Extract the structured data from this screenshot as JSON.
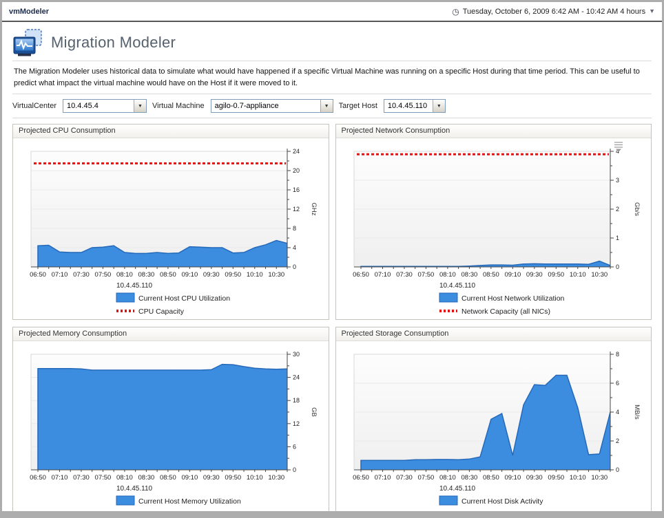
{
  "header": {
    "app_title": "vmModeler",
    "clock_icon": "clock",
    "date_range": "Tuesday, October 6, 2009 6:42 AM - 10:42 AM 4 hours",
    "dropdown_arrow": "▼"
  },
  "page": {
    "title": "Migration Modeler",
    "description": "The Migration Modeler uses historical data to simulate what would have happened if a specific Virtual Machine was running on a specific Host during that time period. This can be useful to predict what impact the virtual machine would have on the Host if it were moved to it."
  },
  "filters": {
    "virtualcenter_label": "VirtualCenter",
    "virtualcenter_value": "10.4.45.4",
    "vm_label": "Virtual Machine",
    "vm_value": "agilo-0.7-appliance",
    "target_label": "Target Host",
    "target_value": "10.4.45.110"
  },
  "colors": {
    "area_fill": "#3c8ce0",
    "area_stroke": "#2569b8",
    "capacity_red": "#e41212",
    "grid": "#e9e9e9",
    "axis": "#444444",
    "plot_border": "#d8d8d8",
    "tick_text": "#222222"
  },
  "chart_data": [
    {
      "type": "area",
      "panel_title": "Projected CPU Consumption",
      "host": "10.4.45.110",
      "x": [
        "06:50",
        "07:00",
        "07:10",
        "07:20",
        "07:30",
        "07:40",
        "07:50",
        "08:00",
        "08:10",
        "08:20",
        "08:30",
        "08:40",
        "08:50",
        "09:00",
        "09:10",
        "09:20",
        "09:30",
        "09:40",
        "09:50",
        "10:00",
        "10:10",
        "10:20",
        "10:30",
        "10:40"
      ],
      "x_tick_labels": [
        "06:50",
        "07:10",
        "07:30",
        "07:50",
        "08:10",
        "08:30",
        "08:50",
        "09:10",
        "09:30",
        "09:50",
        "10:10",
        "10:30"
      ],
      "series": [
        {
          "name": "Current Host CPU Utilization",
          "values": [
            4.4,
            4.5,
            3.1,
            3.0,
            3.0,
            4.0,
            4.1,
            4.4,
            3.0,
            2.8,
            2.8,
            3.0,
            2.8,
            2.9,
            4.2,
            4.1,
            4.0,
            4.0,
            2.9,
            3.0,
            4.0,
            4.6,
            5.5,
            4.9
          ]
        }
      ],
      "capacity": {
        "label": "CPU Capacity",
        "value": 21.5
      },
      "ylim": [
        0,
        24
      ],
      "ymajor": 4,
      "yminor": 2,
      "ytick_labels": [
        "0",
        "4",
        "8",
        "12",
        "16",
        "20",
        "24"
      ],
      "ylabel": "GHz",
      "has_menu_icon": false,
      "legend_position": "bottom",
      "grid_on": true
    },
    {
      "type": "area",
      "panel_title": "Projected Network Consumption",
      "host": "10.4.45.110",
      "x": [
        "06:50",
        "07:00",
        "07:10",
        "07:20",
        "07:30",
        "07:40",
        "07:50",
        "08:00",
        "08:10",
        "08:20",
        "08:30",
        "08:40",
        "08:50",
        "09:00",
        "09:10",
        "09:20",
        "09:30",
        "09:40",
        "09:50",
        "10:00",
        "10:10",
        "10:20",
        "10:30",
        "10:40"
      ],
      "x_tick_labels": [
        "06:50",
        "07:10",
        "07:30",
        "07:50",
        "08:10",
        "08:30",
        "08:50",
        "09:10",
        "09:30",
        "09:50",
        "10:10",
        "10:30"
      ],
      "series": [
        {
          "name": "Current Host Network Utilization",
          "values": [
            0.02,
            0.02,
            0.02,
            0.02,
            0.02,
            0.02,
            0.02,
            0.02,
            0.02,
            0.02,
            0.03,
            0.05,
            0.07,
            0.07,
            0.06,
            0.1,
            0.11,
            0.1,
            0.1,
            0.1,
            0.1,
            0.09,
            0.2,
            0.05
          ]
        }
      ],
      "capacity": {
        "label": "Network Capacity (all NICs)",
        "value": 3.9
      },
      "ylim": [
        0,
        4
      ],
      "ymajor": 1,
      "yminor": 0.5,
      "ytick_labels": [
        "0",
        "1",
        "2",
        "3",
        "4"
      ],
      "ylabel": "Gb/s",
      "has_menu_icon": true,
      "legend_position": "bottom",
      "grid_on": true
    },
    {
      "type": "area",
      "panel_title": "Projected Memory Consumption",
      "host": "10.4.45.110",
      "x": [
        "06:50",
        "07:00",
        "07:10",
        "07:20",
        "07:30",
        "07:40",
        "07:50",
        "08:00",
        "08:10",
        "08:20",
        "08:30",
        "08:40",
        "08:50",
        "09:00",
        "09:10",
        "09:20",
        "09:30",
        "09:40",
        "09:50",
        "10:00",
        "10:10",
        "10:20",
        "10:30",
        "10:40"
      ],
      "x_tick_labels": [
        "06:50",
        "07:10",
        "07:30",
        "07:50",
        "08:10",
        "08:30",
        "08:50",
        "09:10",
        "09:30",
        "09:50",
        "10:10",
        "10:30"
      ],
      "series": [
        {
          "name": "Current Host Memory Utilization",
          "values": [
            26.3,
            26.3,
            26.3,
            26.3,
            26.2,
            25.9,
            25.9,
            25.9,
            25.9,
            25.9,
            25.9,
            25.9,
            25.9,
            25.9,
            25.9,
            25.9,
            26.0,
            27.4,
            27.3,
            26.8,
            26.4,
            26.2,
            26.1,
            26.2
          ]
        }
      ],
      "capacity": null,
      "ylim": [
        0,
        30
      ],
      "ymajor": 6,
      "yminor": 3,
      "ytick_labels": [
        "0",
        "6",
        "12",
        "18",
        "24",
        "30"
      ],
      "ylabel": "GB",
      "has_menu_icon": false,
      "legend_position": "bottom",
      "grid_on": true
    },
    {
      "type": "area",
      "panel_title": "Projected Storage Consumption",
      "host": "10.4.45.110",
      "x": [
        "06:50",
        "07:00",
        "07:10",
        "07:20",
        "07:30",
        "07:40",
        "07:50",
        "08:00",
        "08:10",
        "08:20",
        "08:30",
        "08:40",
        "08:50",
        "09:00",
        "09:10",
        "09:20",
        "09:30",
        "09:40",
        "09:50",
        "10:00",
        "10:10",
        "10:20",
        "10:30",
        "10:40"
      ],
      "x_tick_labels": [
        "06:50",
        "07:10",
        "07:30",
        "07:50",
        "08:10",
        "08:30",
        "08:50",
        "09:10",
        "09:30",
        "09:50",
        "10:10",
        "10:30"
      ],
      "series": [
        {
          "name": "Current Host Disk Activity",
          "values": [
            0.65,
            0.65,
            0.65,
            0.65,
            0.65,
            0.7,
            0.7,
            0.72,
            0.72,
            0.7,
            0.75,
            0.9,
            3.5,
            3.9,
            1.0,
            4.5,
            5.9,
            5.85,
            6.55,
            6.55,
            4.3,
            1.05,
            1.1,
            4.0
          ]
        }
      ],
      "capacity": null,
      "ylim": [
        0,
        8
      ],
      "ymajor": 2,
      "yminor": 1,
      "ytick_labels": [
        "0",
        "2",
        "4",
        "6",
        "8"
      ],
      "ylabel": "MB/s",
      "has_menu_icon": false,
      "legend_position": "bottom",
      "grid_on": true
    }
  ]
}
